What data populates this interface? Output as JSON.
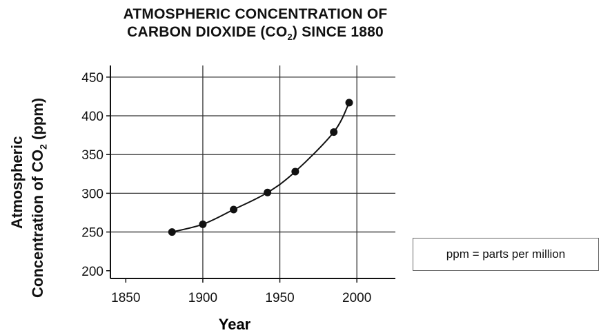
{
  "chart_data": {
    "type": "line",
    "title_line1": "ATMOSPHERIC CONCENTRATION OF",
    "title_line2_pre": "CARBON DIOXIDE (CO",
    "title_line2_sub": "2",
    "title_line2_post": ") SINCE 1880",
    "xlabel": "Year",
    "ylabel_line1": "Atmospheric",
    "ylabel_line2_pre": "Concentration of CO",
    "ylabel_line2_sub": "2",
    "ylabel_line2_post": " (ppm)",
    "xlim": [
      1840,
      2025
    ],
    "ylim": [
      190,
      465
    ],
    "x_ticks": [
      1850,
      1900,
      1950,
      2000
    ],
    "y_ticks": [
      200,
      250,
      300,
      350,
      400,
      450
    ],
    "grid": true,
    "series": [
      {
        "points": [
          {
            "x": 1880,
            "y": 250
          },
          {
            "x": 1900,
            "y": 260
          },
          {
            "x": 1920,
            "y": 279
          },
          {
            "x": 1942,
            "y": 301
          },
          {
            "x": 1960,
            "y": 328
          },
          {
            "x": 1985,
            "y": 379
          },
          {
            "x": 1995,
            "y": 417
          }
        ]
      }
    ]
  },
  "legend_note": "ppm = parts per million"
}
